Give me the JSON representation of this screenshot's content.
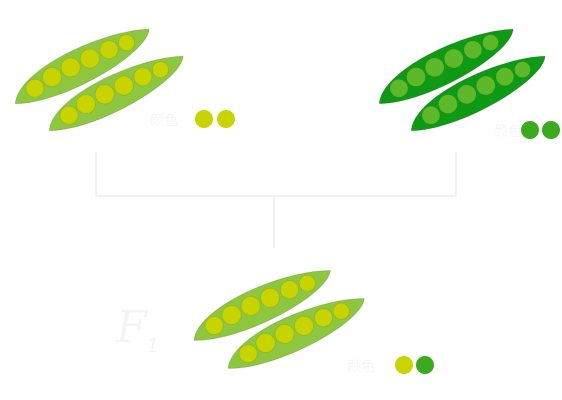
{
  "diagram": {
    "parent_left": {
      "label": "颜色",
      "pod_color": "#8dc63f",
      "pea_color": "#c8d400",
      "genotype_dots": [
        "#c8d400",
        "#c8d400"
      ]
    },
    "parent_right": {
      "label": "颜色",
      "pod_color": "#0f9a16",
      "pea_color": "#5db82a",
      "genotype_dots": [
        "#3aaa1e",
        "#3aaa1e"
      ]
    },
    "offspring": {
      "generation": "F",
      "generation_sub": "1",
      "label": "颜色",
      "pod_color": "#8dc63f",
      "pea_color": "#c8d400",
      "genotype_dots": [
        "#c8d400",
        "#3aaa1e"
      ]
    },
    "connector_color": "#f1f1f1"
  }
}
